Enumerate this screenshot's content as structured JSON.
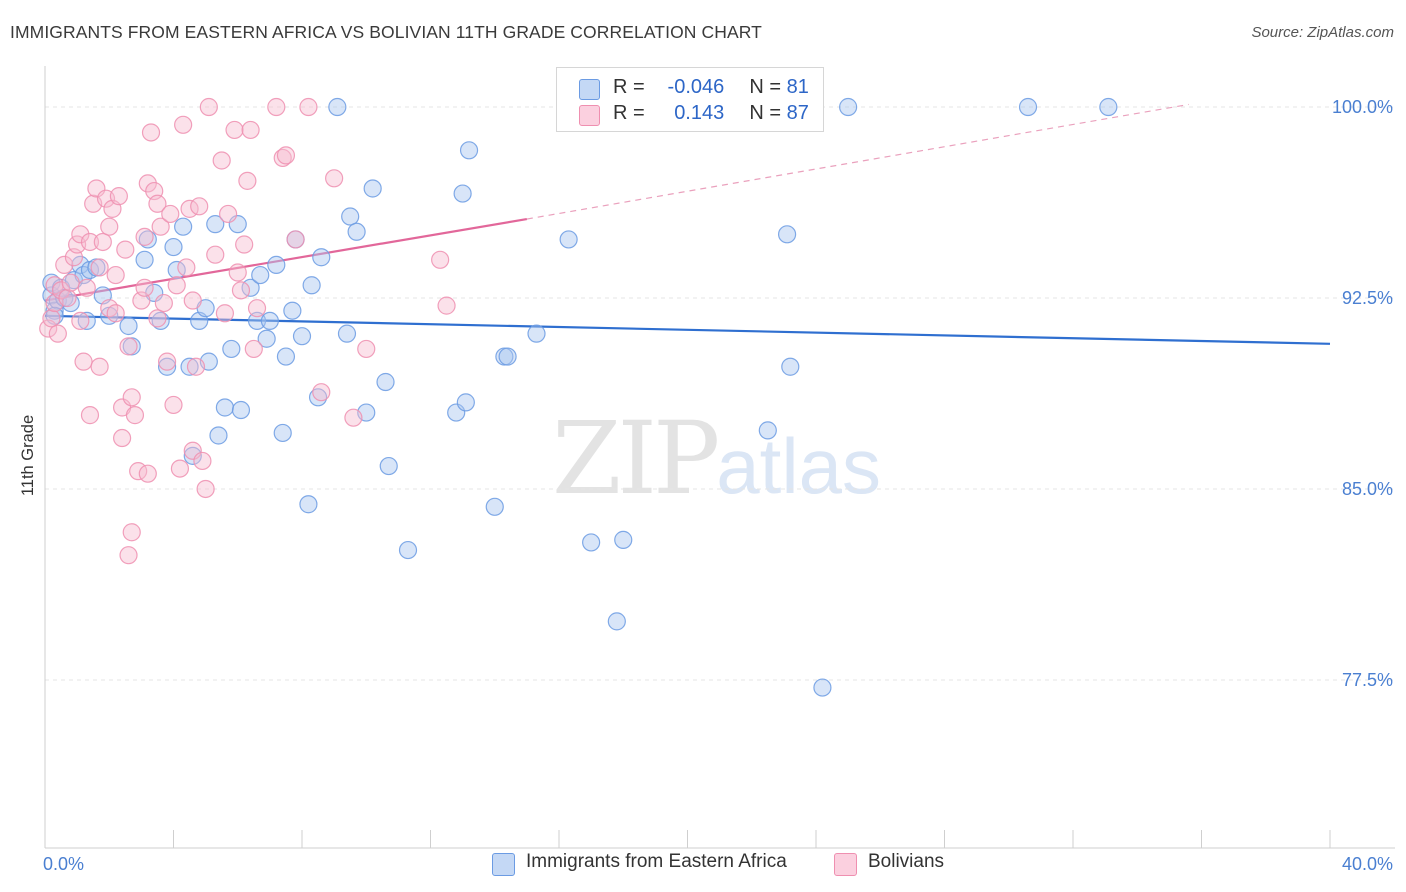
{
  "title": "IMMIGRANTS FROM EASTERN AFRICA VS BOLIVIAN 11TH GRADE CORRELATION CHART",
  "source": "Source: ZipAtlas.com",
  "watermark": {
    "left": "ZIP",
    "right": "atlas"
  },
  "legend_top": [
    {
      "r_label": "R =",
      "r_value": "-0.046",
      "n_label": "N =",
      "n_value": "81",
      "color": "#6b9be3"
    },
    {
      "r_label": "R =",
      "r_value": "0.143",
      "n_label": "N =",
      "n_value": "87",
      "color": "#ef8fb0"
    }
  ],
  "legend_bottom": [
    {
      "label": "Immigrants from Eastern Africa",
      "color": "#6b9be3"
    },
    {
      "label": "Bolivians",
      "color": "#ef8fb0"
    }
  ],
  "chart_data": {
    "type": "scatter",
    "title": "IMMIGRANTS FROM EASTERN AFRICA VS BOLIVIAN 11TH GRADE CORRELATION CHART",
    "xlabel": "",
    "ylabel": "11th Grade",
    "xlim": [
      0,
      40
    ],
    "ylim": [
      70.9,
      101.1
    ],
    "x_tick_labels": [
      "0.0%",
      "40.0%"
    ],
    "y_ticks": [
      77.5,
      85.0,
      92.5,
      100.0
    ],
    "y_tick_labels": [
      "77.5%",
      "85.0%",
      "92.5%",
      "100.0%"
    ],
    "grid": true,
    "series": [
      {
        "name": "Immigrants from Eastern Africa",
        "color": "#6b9be3",
        "trend": {
          "x0": 0,
          "y0": 91.8,
          "x1": 40,
          "y1": 90.7
        },
        "points": [
          [
            0.2,
            92.6
          ],
          [
            0.2,
            93.1
          ],
          [
            0.3,
            92.0
          ],
          [
            0.4,
            92.4
          ],
          [
            0.5,
            92.9
          ],
          [
            0.6,
            92.5
          ],
          [
            0.8,
            92.3
          ],
          [
            0.9,
            93.2
          ],
          [
            1.1,
            93.8
          ],
          [
            1.2,
            93.4
          ],
          [
            1.4,
            93.6
          ],
          [
            1.6,
            93.7
          ],
          [
            1.3,
            91.6
          ],
          [
            1.8,
            92.6
          ],
          [
            2.0,
            91.8
          ],
          [
            2.6,
            91.4
          ],
          [
            2.7,
            90.6
          ],
          [
            3.1,
            94.0
          ],
          [
            3.2,
            94.8
          ],
          [
            3.4,
            92.7
          ],
          [
            3.6,
            91.6
          ],
          [
            3.8,
            89.8
          ],
          [
            4.0,
            94.5
          ],
          [
            4.1,
            93.6
          ],
          [
            4.3,
            95.3
          ],
          [
            4.5,
            89.8
          ],
          [
            4.6,
            86.3
          ],
          [
            4.8,
            91.6
          ],
          [
            5.0,
            92.1
          ],
          [
            5.1,
            90.0
          ],
          [
            5.3,
            95.4
          ],
          [
            5.4,
            87.1
          ],
          [
            5.6,
            88.2
          ],
          [
            5.8,
            90.5
          ],
          [
            6.0,
            95.4
          ],
          [
            6.1,
            88.1
          ],
          [
            6.4,
            92.9
          ],
          [
            6.6,
            91.6
          ],
          [
            6.7,
            93.4
          ],
          [
            6.9,
            90.9
          ],
          [
            7.0,
            91.6
          ],
          [
            7.2,
            93.8
          ],
          [
            7.4,
            87.2
          ],
          [
            7.5,
            90.2
          ],
          [
            7.7,
            92.0
          ],
          [
            7.8,
            94.8
          ],
          [
            8.0,
            91.0
          ],
          [
            8.2,
            84.4
          ],
          [
            8.3,
            93.0
          ],
          [
            8.5,
            88.6
          ],
          [
            8.6,
            94.1
          ],
          [
            9.1,
            100.0
          ],
          [
            9.4,
            91.1
          ],
          [
            9.5,
            95.7
          ],
          [
            9.7,
            95.1
          ],
          [
            10.0,
            88.0
          ],
          [
            10.2,
            96.8
          ],
          [
            10.6,
            89.2
          ],
          [
            10.7,
            85.9
          ],
          [
            11.3,
            82.6
          ],
          [
            12.8,
            88.0
          ],
          [
            13.0,
            96.6
          ],
          [
            13.1,
            88.4
          ],
          [
            13.2,
            98.3
          ],
          [
            14.0,
            84.3
          ],
          [
            14.3,
            90.2
          ],
          [
            14.4,
            90.2
          ],
          [
            15.3,
            91.1
          ],
          [
            16.3,
            94.8
          ],
          [
            17.0,
            82.9
          ],
          [
            17.5,
            100.0
          ],
          [
            17.8,
            79.8
          ],
          [
            18.0,
            83.0
          ],
          [
            22.5,
            87.3
          ],
          [
            23.1,
            95.0
          ],
          [
            23.2,
            89.8
          ],
          [
            24.2,
            77.2
          ],
          [
            25.0,
            100.0
          ],
          [
            30.6,
            100.0
          ],
          [
            33.1,
            100.0
          ],
          [
            0.3,
            91.8
          ]
        ]
      },
      {
        "name": "Bolivians",
        "color": "#ef8fb0",
        "trend": {
          "x0": 0,
          "y0": 92.4,
          "x1": 15.0,
          "y1": 95.6,
          "dash_x1": 35.6,
          "dash_y1": 100.1
        },
        "points": [
          [
            0.1,
            91.3
          ],
          [
            0.2,
            91.7
          ],
          [
            0.3,
            92.3
          ],
          [
            0.3,
            93.0
          ],
          [
            0.4,
            91.1
          ],
          [
            0.5,
            92.8
          ],
          [
            0.6,
            93.8
          ],
          [
            0.7,
            92.5
          ],
          [
            0.8,
            93.1
          ],
          [
            0.9,
            94.1
          ],
          [
            1.0,
            94.6
          ],
          [
            1.1,
            95.0
          ],
          [
            1.1,
            91.6
          ],
          [
            1.2,
            90.0
          ],
          [
            1.3,
            92.9
          ],
          [
            1.4,
            94.7
          ],
          [
            1.4,
            87.9
          ],
          [
            1.5,
            96.2
          ],
          [
            1.6,
            96.8
          ],
          [
            1.7,
            93.7
          ],
          [
            1.7,
            89.8
          ],
          [
            1.8,
            94.7
          ],
          [
            1.9,
            96.4
          ],
          [
            2.0,
            95.3
          ],
          [
            2.0,
            92.1
          ],
          [
            2.1,
            96.0
          ],
          [
            2.2,
            91.9
          ],
          [
            2.2,
            93.4
          ],
          [
            2.3,
            96.5
          ],
          [
            2.4,
            88.2
          ],
          [
            2.4,
            87.0
          ],
          [
            2.5,
            94.4
          ],
          [
            2.6,
            82.4
          ],
          [
            2.6,
            90.6
          ],
          [
            2.7,
            88.6
          ],
          [
            2.7,
            83.3
          ],
          [
            2.8,
            87.9
          ],
          [
            2.9,
            85.7
          ],
          [
            3.0,
            92.4
          ],
          [
            3.1,
            94.9
          ],
          [
            3.1,
            92.9
          ],
          [
            3.2,
            85.6
          ],
          [
            3.2,
            97.0
          ],
          [
            3.3,
            99.0
          ],
          [
            3.4,
            96.7
          ],
          [
            3.5,
            96.2
          ],
          [
            3.5,
            91.7
          ],
          [
            3.6,
            95.3
          ],
          [
            3.7,
            92.3
          ],
          [
            3.8,
            90.0
          ],
          [
            3.9,
            95.8
          ],
          [
            4.0,
            88.3
          ],
          [
            4.1,
            93.0
          ],
          [
            4.2,
            85.8
          ],
          [
            4.3,
            99.3
          ],
          [
            4.4,
            93.7
          ],
          [
            4.5,
            96.0
          ],
          [
            4.6,
            86.5
          ],
          [
            4.6,
            92.4
          ],
          [
            4.7,
            89.8
          ],
          [
            4.8,
            96.1
          ],
          [
            4.9,
            86.1
          ],
          [
            5.0,
            85.0
          ],
          [
            5.1,
            100.0
          ],
          [
            5.3,
            94.2
          ],
          [
            5.5,
            97.9
          ],
          [
            5.6,
            91.9
          ],
          [
            5.7,
            95.8
          ],
          [
            5.9,
            99.1
          ],
          [
            6.0,
            93.5
          ],
          [
            6.1,
            92.8
          ],
          [
            6.2,
            94.6
          ],
          [
            6.3,
            97.1
          ],
          [
            6.4,
            99.1
          ],
          [
            6.5,
            90.5
          ],
          [
            6.6,
            92.1
          ],
          [
            7.2,
            100.0
          ],
          [
            7.4,
            98.0
          ],
          [
            7.5,
            98.1
          ],
          [
            7.8,
            94.8
          ],
          [
            8.2,
            100.0
          ],
          [
            8.6,
            88.8
          ],
          [
            9.0,
            97.2
          ],
          [
            9.6,
            87.8
          ],
          [
            10.0,
            90.5
          ],
          [
            12.3,
            94.0
          ],
          [
            12.5,
            92.2
          ]
        ]
      }
    ]
  }
}
